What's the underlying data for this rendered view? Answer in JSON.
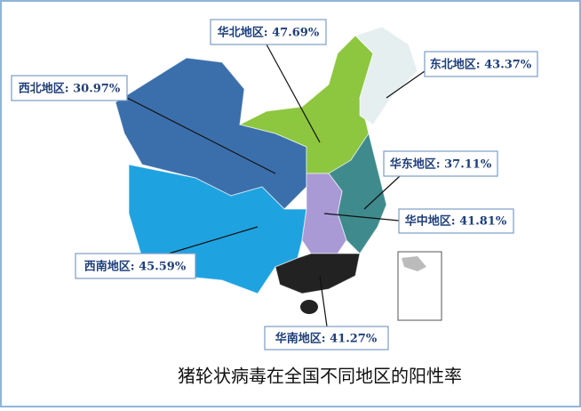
{
  "title": "猪轮状病毒在全国不同地区的阳性率",
  "regions": [
    {
      "label": "华北地区: 47.69%"
    },
    {
      "label": "东北地区: 43.37%"
    },
    {
      "label": "西北地区: 30.97%"
    },
    {
      "label": "华东地区: 37.11%"
    },
    {
      "label": "华中地区: 41.81%"
    },
    {
      "label": "西南地区: 45.59%"
    },
    {
      "label": "华南地区: 41.27%"
    }
  ]
}
